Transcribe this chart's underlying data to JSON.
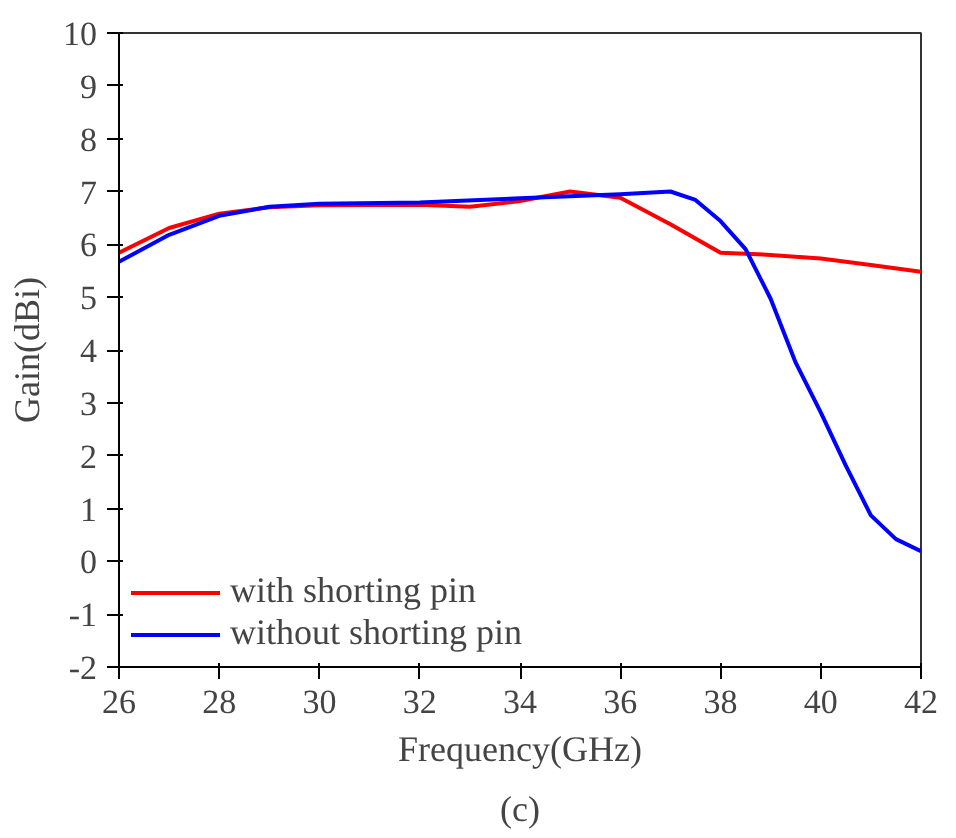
{
  "chart_data": {
    "type": "line",
    "xlabel": "Frequency(GHz)",
    "ylabel": "Gain(dBi)",
    "annotations": [
      "(c)"
    ],
    "xlim": [
      26,
      42
    ],
    "xticks": [
      26,
      28,
      30,
      32,
      34,
      36,
      38,
      40,
      42
    ],
    "ylim": [
      -2,
      10
    ],
    "yticks": [
      -2,
      -1,
      0,
      1,
      2,
      3,
      4,
      5,
      6,
      7,
      8,
      9,
      10
    ],
    "grid": false,
    "legend": "bottom left",
    "series": [
      {
        "name": "with shorting pin",
        "color": "#ff0000",
        "x": [
          26,
          27,
          28,
          29,
          30,
          32,
          33,
          34,
          35,
          36,
          37,
          38,
          39,
          40,
          41,
          42
        ],
        "values": [
          5.84,
          6.31,
          6.58,
          6.7,
          6.74,
          6.75,
          6.71,
          6.82,
          7.0,
          6.88,
          6.38,
          5.84,
          5.8,
          5.73,
          5.61,
          5.48
        ]
      },
      {
        "name": "without shorting pin",
        "color": "#0000ff",
        "x": [
          26,
          27,
          28,
          29,
          30,
          32,
          34,
          36,
          37,
          37.5,
          38,
          38.5,
          39,
          39.5,
          40,
          40.5,
          41,
          41.5,
          42
        ],
        "values": [
          5.67,
          6.18,
          6.54,
          6.71,
          6.77,
          6.79,
          6.87,
          6.95,
          7.0,
          6.84,
          6.44,
          5.91,
          4.97,
          3.76,
          2.82,
          1.81,
          0.87,
          0.42,
          0.19
        ]
      }
    ]
  }
}
